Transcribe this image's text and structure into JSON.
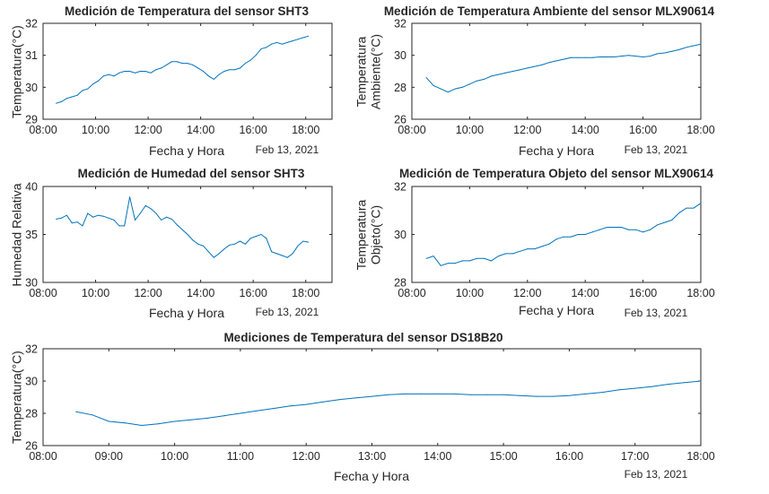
{
  "chart_data": [
    {
      "id": "sht3_temp",
      "type": "line",
      "title": "Medición de Temperatura del sensor SHT3",
      "xlabel": "Fecha y Hora",
      "ylabel": [
        "Temperatura(°C)"
      ],
      "date_label": "Feb 13, 2021",
      "xlim": [
        8,
        19
      ],
      "ylim": [
        29,
        32
      ],
      "x_ticks": [
        8,
        10,
        12,
        14,
        16,
        18
      ],
      "x_tick_labels": [
        "08:00",
        "10:00",
        "12:00",
        "14:00",
        "16:00",
        "18:00"
      ],
      "y_ticks": [
        29,
        30,
        31,
        32
      ],
      "y_tick_labels": [
        "29",
        "30",
        "31",
        "32"
      ],
      "color": "#0072BD",
      "series": [
        {
          "name": "SHT3",
          "x": [
            8.5,
            8.7,
            8.9,
            9.1,
            9.3,
            9.5,
            9.7,
            9.9,
            10.1,
            10.3,
            10.5,
            10.7,
            10.9,
            11.1,
            11.3,
            11.5,
            11.7,
            11.9,
            12.1,
            12.3,
            12.5,
            12.7,
            12.9,
            13.1,
            13.3,
            13.5,
            13.7,
            13.9,
            14.1,
            14.3,
            14.5,
            14.7,
            14.9,
            15.1,
            15.3,
            15.5,
            15.7,
            15.9,
            16.1,
            16.3,
            16.5,
            16.7,
            16.9,
            17.1,
            17.3,
            17.5,
            17.7,
            17.9,
            18.1
          ],
          "y": [
            29.5,
            29.55,
            29.65,
            29.7,
            29.75,
            29.9,
            29.95,
            30.1,
            30.2,
            30.35,
            30.4,
            30.35,
            30.45,
            30.5,
            30.5,
            30.45,
            30.5,
            30.5,
            30.45,
            30.55,
            30.6,
            30.7,
            30.8,
            30.8,
            30.75,
            30.75,
            30.7,
            30.6,
            30.5,
            30.35,
            30.25,
            30.4,
            30.5,
            30.55,
            30.55,
            30.6,
            30.75,
            30.85,
            31.0,
            31.2,
            31.25,
            31.35,
            31.4,
            31.35,
            31.4,
            31.45,
            31.5,
            31.55,
            31.6
          ]
        }
      ]
    },
    {
      "id": "mlx_amb",
      "type": "line",
      "title": "Medición de Temperatura Ambiente del sensor MLX90614",
      "xlabel": "Fecha y Hora",
      "ylabel": [
        "Temperatura",
        "Ambiente(°C)"
      ],
      "date_label": "Feb 13, 2021",
      "xlim": [
        8,
        18
      ],
      "ylim": [
        26,
        32
      ],
      "x_ticks": [
        8,
        10,
        12,
        14,
        16,
        18
      ],
      "x_tick_labels": [
        "08:00",
        "10:00",
        "12:00",
        "14:00",
        "16:00",
        "18:00"
      ],
      "y_ticks": [
        26,
        28,
        30,
        32
      ],
      "y_tick_labels": [
        "26",
        "28",
        "30",
        "32"
      ],
      "color": "#0072BD",
      "series": [
        {
          "name": "MLX90614 Ambiente",
          "x": [
            8.5,
            8.75,
            9.0,
            9.25,
            9.5,
            9.75,
            10.0,
            10.25,
            10.5,
            10.75,
            11.0,
            11.25,
            11.5,
            11.75,
            12.0,
            12.25,
            12.5,
            12.75,
            13.0,
            13.25,
            13.5,
            13.75,
            14.0,
            14.25,
            14.5,
            14.75,
            15.0,
            15.25,
            15.5,
            15.75,
            16.0,
            16.25,
            16.5,
            16.75,
            17.0,
            17.25,
            17.5,
            17.75,
            18.0
          ],
          "y": [
            28.6,
            28.1,
            27.9,
            27.7,
            27.9,
            28.0,
            28.2,
            28.4,
            28.5,
            28.7,
            28.8,
            28.9,
            29.0,
            29.1,
            29.2,
            29.3,
            29.4,
            29.55,
            29.65,
            29.75,
            29.85,
            29.85,
            29.85,
            29.85,
            29.9,
            29.9,
            29.9,
            29.95,
            30.0,
            29.95,
            29.9,
            29.95,
            30.1,
            30.15,
            30.25,
            30.35,
            30.5,
            30.6,
            30.7
          ]
        }
      ]
    },
    {
      "id": "sht3_hum",
      "type": "line",
      "title": "Medición de Humedad del sensor SHT3",
      "xlabel": "Fecha y Hora",
      "ylabel": [
        "Humedad Relativa"
      ],
      "date_label": "Feb 13, 2021",
      "xlim": [
        8,
        19
      ],
      "ylim": [
        30,
        40
      ],
      "x_ticks": [
        8,
        10,
        12,
        14,
        16,
        18
      ],
      "x_tick_labels": [
        "08:00",
        "10:00",
        "12:00",
        "14:00",
        "16:00",
        "18:00"
      ],
      "y_ticks": [
        30,
        35,
        40
      ],
      "y_tick_labels": [
        "30",
        "35",
        "40"
      ],
      "color": "#0072BD",
      "series": [
        {
          "name": "SHT3 Humedad",
          "x": [
            8.5,
            8.7,
            8.9,
            9.1,
            9.3,
            9.5,
            9.7,
            9.9,
            10.1,
            10.3,
            10.5,
            10.7,
            10.9,
            11.1,
            11.3,
            11.5,
            11.7,
            11.9,
            12.1,
            12.3,
            12.5,
            12.7,
            12.9,
            13.1,
            13.3,
            13.5,
            13.7,
            13.9,
            14.1,
            14.3,
            14.5,
            14.7,
            14.9,
            15.1,
            15.3,
            15.5,
            15.7,
            15.9,
            16.1,
            16.3,
            16.5,
            16.7,
            16.9,
            17.1,
            17.3,
            17.5,
            17.7,
            17.9,
            18.1
          ],
          "y": [
            36.6,
            36.7,
            37.0,
            36.2,
            36.3,
            35.9,
            37.2,
            36.8,
            37.0,
            36.9,
            36.7,
            36.5,
            35.9,
            35.9,
            38.9,
            36.5,
            37.2,
            38.0,
            37.7,
            37.2,
            36.5,
            36.8,
            36.6,
            36.0,
            35.5,
            35.0,
            34.4,
            34.0,
            33.8,
            33.2,
            32.6,
            33.0,
            33.5,
            33.9,
            34.0,
            34.3,
            34.0,
            34.6,
            34.8,
            35.0,
            34.6,
            33.2,
            33.0,
            32.8,
            32.6,
            33.0,
            33.8,
            34.3,
            34.2
          ]
        }
      ]
    },
    {
      "id": "mlx_obj",
      "type": "line",
      "title": "Medición de Temperatura Objeto del sensor MLX90614",
      "xlabel": "Fecha y Hora",
      "ylabel": [
        "Temperatura",
        "Objeto(°C)"
      ],
      "date_label": "Feb 13, 2021",
      "xlim": [
        8,
        18
      ],
      "ylim": [
        28,
        32
      ],
      "x_ticks": [
        8,
        10,
        12,
        14,
        16,
        18
      ],
      "x_tick_labels": [
        "08:00",
        "10:00",
        "12:00",
        "14:00",
        "16:00",
        "18:00"
      ],
      "y_ticks": [
        28,
        30,
        32
      ],
      "y_tick_labels": [
        "28",
        "30",
        "32"
      ],
      "color": "#0072BD",
      "series": [
        {
          "name": "MLX90614 Objeto",
          "x": [
            8.5,
            8.75,
            9.0,
            9.25,
            9.5,
            9.75,
            10.0,
            10.25,
            10.5,
            10.75,
            11.0,
            11.25,
            11.5,
            11.75,
            12.0,
            12.25,
            12.5,
            12.75,
            13.0,
            13.25,
            13.5,
            13.75,
            14.0,
            14.25,
            14.5,
            14.75,
            15.0,
            15.25,
            15.5,
            15.75,
            16.0,
            16.25,
            16.5,
            16.75,
            17.0,
            17.25,
            17.5,
            17.75,
            18.0
          ],
          "y": [
            29.0,
            29.1,
            28.7,
            28.8,
            28.8,
            28.9,
            28.9,
            29.0,
            29.0,
            28.9,
            29.1,
            29.2,
            29.2,
            29.3,
            29.4,
            29.4,
            29.5,
            29.6,
            29.8,
            29.9,
            29.9,
            30.0,
            30.0,
            30.1,
            30.2,
            30.3,
            30.3,
            30.3,
            30.2,
            30.2,
            30.1,
            30.2,
            30.4,
            30.5,
            30.6,
            30.9,
            31.1,
            31.1,
            31.3
          ]
        }
      ]
    },
    {
      "id": "ds18b20",
      "type": "line",
      "title": "Mediciones de Temperatura del sensor DS18B20",
      "xlabel": "Fecha y Hora",
      "ylabel": [
        "Temperatura(°C)"
      ],
      "date_label": "Feb 13, 2021",
      "xlim": [
        8,
        18
      ],
      "ylim": [
        26,
        32
      ],
      "x_ticks": [
        8,
        9,
        10,
        11,
        12,
        13,
        14,
        15,
        16,
        17,
        18
      ],
      "x_tick_labels": [
        "08:00",
        "09:00",
        "10:00",
        "11:00",
        "12:00",
        "13:00",
        "14:00",
        "15:00",
        "16:00",
        "17:00",
        "18:00"
      ],
      "y_ticks": [
        26,
        28,
        30,
        32
      ],
      "y_tick_labels": [
        "26",
        "28",
        "30",
        "32"
      ],
      "color": "#0072BD",
      "series": [
        {
          "name": "DS18B20",
          "x": [
            8.5,
            8.75,
            9.0,
            9.25,
            9.5,
            9.75,
            10.0,
            10.25,
            10.5,
            10.75,
            11.0,
            11.25,
            11.5,
            11.75,
            12.0,
            12.25,
            12.5,
            12.75,
            13.0,
            13.25,
            13.5,
            13.75,
            14.0,
            14.25,
            14.5,
            14.75,
            15.0,
            15.25,
            15.5,
            15.75,
            16.0,
            16.25,
            16.5,
            16.75,
            17.0,
            17.25,
            17.5,
            17.75,
            18.0
          ],
          "y": [
            28.1,
            27.9,
            27.5,
            27.4,
            27.25,
            27.35,
            27.5,
            27.6,
            27.7,
            27.85,
            28.0,
            28.15,
            28.3,
            28.45,
            28.55,
            28.7,
            28.85,
            28.95,
            29.05,
            29.15,
            29.2,
            29.2,
            29.2,
            29.2,
            29.15,
            29.15,
            29.15,
            29.1,
            29.05,
            29.05,
            29.1,
            29.2,
            29.3,
            29.45,
            29.55,
            29.65,
            29.8,
            29.9,
            30.0
          ]
        }
      ]
    }
  ]
}
